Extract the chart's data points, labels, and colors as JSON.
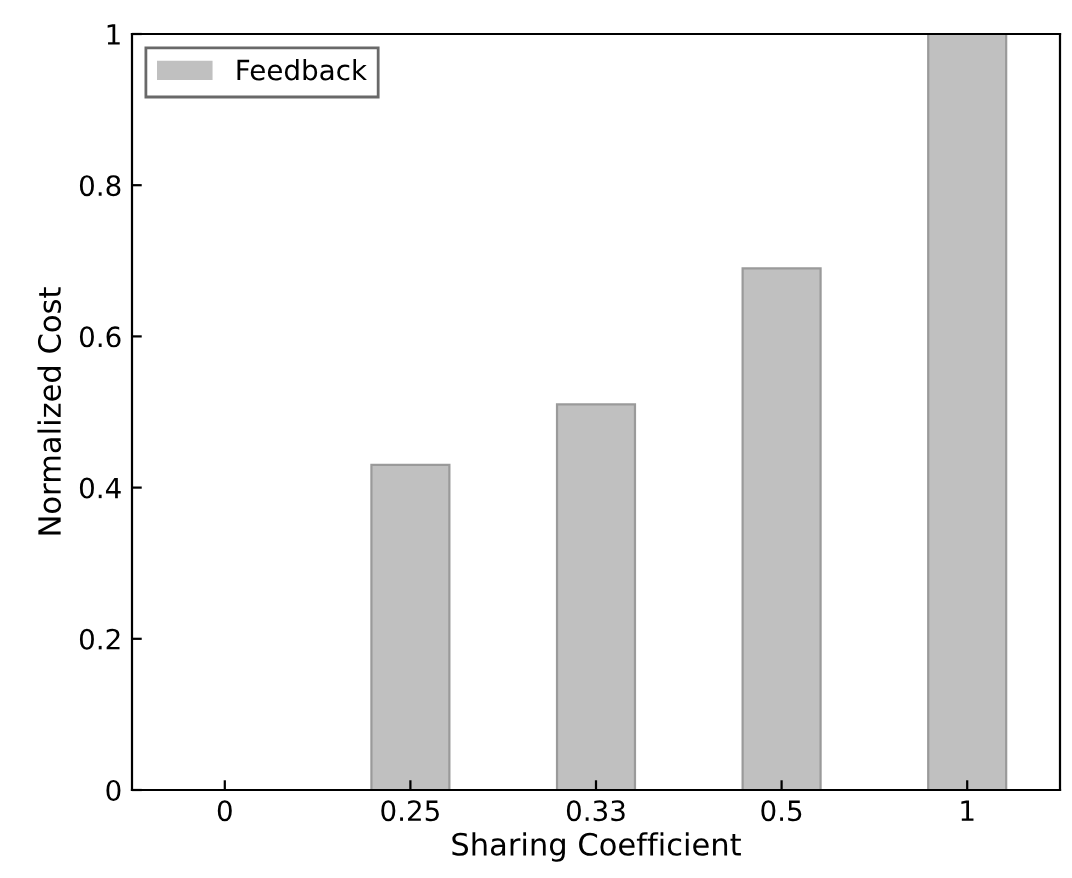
{
  "chart_data": {
    "type": "bar",
    "xlabel": "Sharing Coefficient",
    "ylabel": "Normalized Cost",
    "categories": [
      "0",
      "0.25",
      "0.33",
      "0.5",
      "1"
    ],
    "series": [
      {
        "name": "Feedback",
        "color": "#c0c0c0",
        "values": [
          0,
          0.43,
          0.51,
          0.69,
          1.0
        ]
      }
    ],
    "ylim": [
      0,
      1
    ],
    "yticks": [
      0,
      0.2,
      0.4,
      0.6,
      0.8,
      1
    ],
    "grid": false,
    "legend": "top left"
  }
}
